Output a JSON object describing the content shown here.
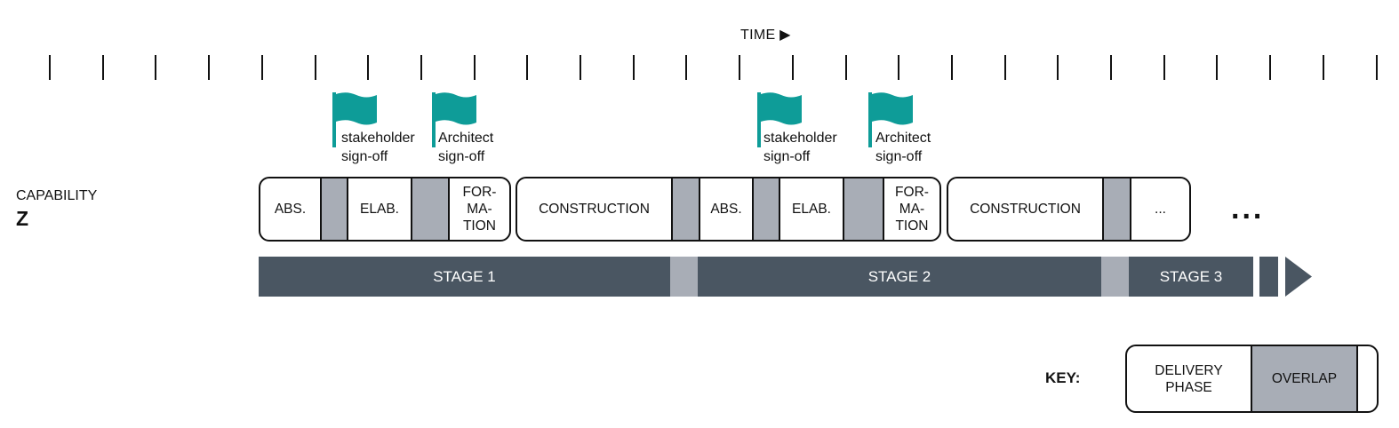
{
  "header": {
    "time_label": "TIME ▶"
  },
  "capability": {
    "label": "CAPABILITY",
    "name": "Z"
  },
  "flags": [
    {
      "label": "stakeholder\nsign-off"
    },
    {
      "label": "Architect\nsign-off"
    },
    {
      "label": "stakeholder\nsign-off"
    },
    {
      "label": "Architect\nsign-off"
    }
  ],
  "phases": {
    "group1": {
      "abs": "ABS.",
      "elab": "ELAB.",
      "formation": "FOR-\nMA-\nTION"
    },
    "group2": {
      "construction": "CONSTRUCTION",
      "abs": "ABS.",
      "elab": "ELAB.",
      "formation": "FOR-\nMA-\nTION"
    },
    "group3": {
      "construction": "CONSTRUCTION",
      "continued": "..."
    }
  },
  "ellipsis": "...",
  "stages": [
    "STAGE 1",
    "STAGE 2",
    "STAGE 3"
  ],
  "key": {
    "label": "KEY:",
    "delivery": "DELIVERY\nPHASE",
    "overlap": "OVERLAP"
  },
  "colors": {
    "flag": "#0e9c98",
    "stage_bar": "#4a5662",
    "overlap": "#a8adb6"
  }
}
